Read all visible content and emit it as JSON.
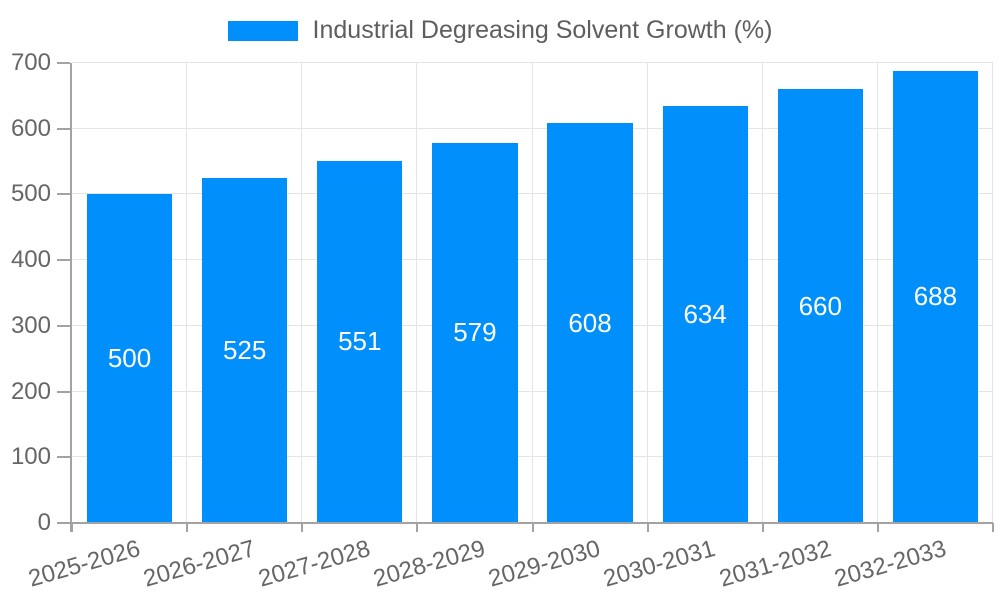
{
  "chart_data": {
    "type": "bar",
    "title": "Industrial Degreasing Solvent Growth (%)",
    "categories": [
      "2025-2026",
      "2026-2027",
      "2027-2028",
      "2028-2029",
      "2029-2030",
      "2030-2031",
      "2031-2032",
      "2032-2033"
    ],
    "values": [
      500,
      525,
      551,
      579,
      608,
      634,
      660,
      688
    ],
    "xlabel": "",
    "ylabel": "",
    "ylim": [
      0,
      700
    ],
    "yticks": [
      0,
      100,
      200,
      300,
      400,
      500,
      600,
      700
    ],
    "grid": true,
    "legend_position": "top",
    "value_labels": "centered-inside-bars",
    "colors": {
      "bar": "#008FFB",
      "grid_line": "#e4e4e4",
      "axis_line": "#a3a3a3",
      "tick_text": "#666666",
      "legend_text": "#5e5e5e",
      "value_label": "#ffffff",
      "background": "#ffffff"
    }
  }
}
